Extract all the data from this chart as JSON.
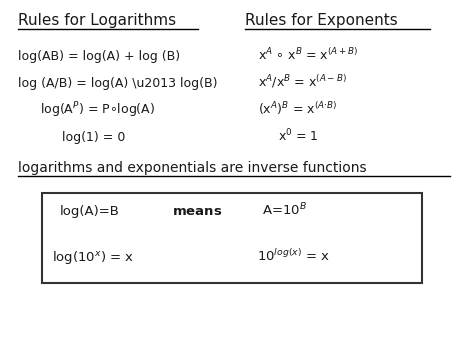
{
  "bg_color": "#ffffff",
  "text_color": "#1a1a1a",
  "title_left": "Rules for Logarithms",
  "title_right": "Rules for Exponents",
  "inverse_label": "logarithms and exponentials are inverse functions"
}
